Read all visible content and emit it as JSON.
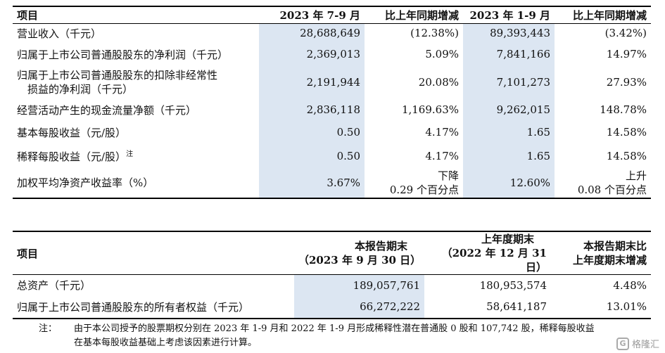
{
  "table1": {
    "headers": [
      "项目",
      "2023 年 7-9 月",
      "比上年同期增减",
      "2023 年 1-9 月",
      "比上年同期增减"
    ],
    "rows": [
      [
        "营业收入（千元）",
        "28,688,649",
        "(12.38%)",
        "89,393,443",
        "(3.42%)"
      ],
      [
        "归属于上市公司普通股股东的净利润（千元）",
        "2,369,013",
        "5.09%",
        "7,841,166",
        "14.97%"
      ],
      [
        "归属于上市公司普通股股东的扣除非经常性损益的净利润（千元）",
        "2,191,944",
        "20.08%",
        "7,101,273",
        "27.93%"
      ],
      [
        "经营活动产生的现金流量净额（千元）",
        "2,836,118",
        "1,169.63%",
        "9,262,015",
        "148.78%"
      ],
      [
        "基本每股收益（元/股）",
        "0.50",
        "4.17%",
        "1.65",
        "14.58%"
      ],
      [
        "稀释每股收益（元/股）",
        "0.50",
        "4.17%",
        "1.65",
        "14.58%"
      ],
      [
        "加权平均净资产收益率（%）",
        "3.67%",
        "下降 0.29 个百分点",
        "12.60%",
        "上升 0.08 个百分点"
      ]
    ],
    "row3_label_line1": "归属于上市公司普通股股东的扣除非经常性",
    "row3_label_line2": "损益的净利润（千元）",
    "row6_note_mark": "注",
    "row7_c2_line1": "下降",
    "row7_c2_line2": "0.29 个百分点",
    "row7_c4_line1": "上升",
    "row7_c4_line2": "0.08 个百分点"
  },
  "table2": {
    "headers": {
      "item": "项目",
      "c1_line1": "本报告期末",
      "c1_line2": "（2023 年 9 月 30 日）",
      "c2_line1": "上年度期末",
      "c2_line2": "（2022 年 12 月 31 日）",
      "c3_line1": "本报告期末比",
      "c3_line2": "上年度期末增减"
    },
    "rows": [
      [
        "总资产（千元）",
        "189,057,761",
        "180,953,574",
        "4.48%"
      ],
      [
        "归属于上市公司普通股股东的所有者权益（千元）",
        "66,272,222",
        "58,641,187",
        "13.01%"
      ]
    ]
  },
  "note": {
    "label": "注：",
    "line1": "由于本公司授予的股票期权分别在 2023 年 1-9 月和 2022 年 1-9 月形成稀释性潜在普通股 0 股和 107,742 股，稀释每股收益",
    "line2": "在基本每股收益基础上考虑该因素进行计算。"
  },
  "watermark": {
    "text": "格隆汇",
    "icon": "G"
  },
  "colors": {
    "highlight": "#dce6f2"
  }
}
